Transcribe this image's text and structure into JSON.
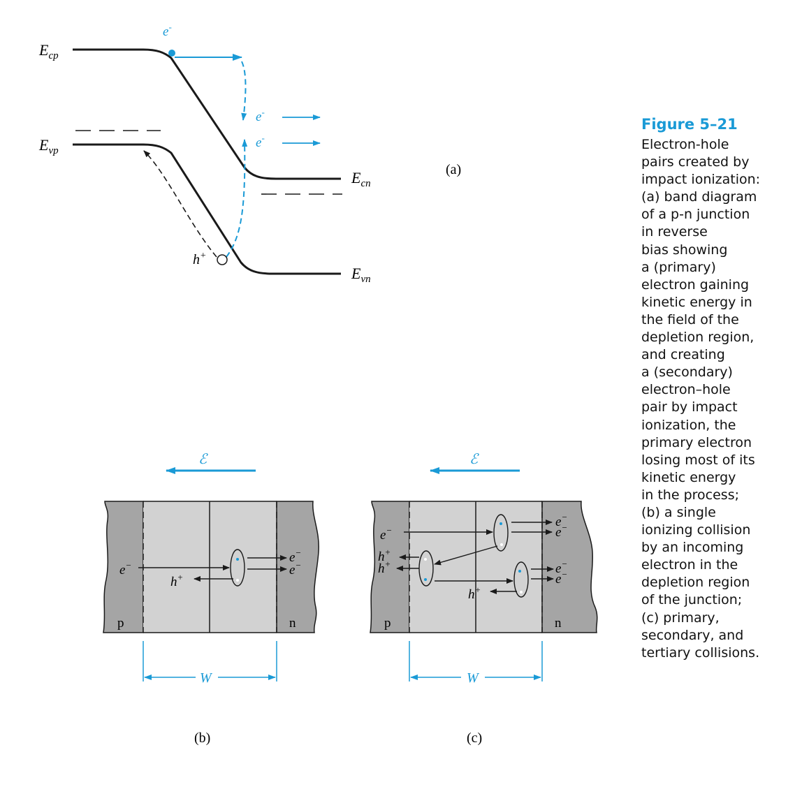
{
  "colors": {
    "accent": "#1a9ad6",
    "line": "#1a1a1a",
    "depletion_fill": "#d2d2d2",
    "neutral_fill": "#a5a5a5"
  },
  "panel_a": {
    "label": "(a)",
    "ecp_label": "E",
    "ecp_sub": "cp",
    "evp_label": "E",
    "evp_sub": "vp",
    "ecn_label": "E",
    "ecn_sub": "cn",
    "evn_label": "E",
    "evn_sub": "vn",
    "electron_label": "e",
    "electron_sup": "-",
    "secondary_electron_1": "e",
    "secondary_electron_1_sup": "-",
    "secondary_electron_2": "e",
    "secondary_electron_2_sup": "-",
    "hole_label": "h",
    "hole_sup": "+"
  },
  "panel_b": {
    "label": "(b)",
    "field_symbol": "ℰ",
    "p_label": "p",
    "n_label": "n",
    "w_label": "W",
    "incoming_electron": "e",
    "incoming_electron_sup": "−",
    "hole": "h",
    "hole_sup": "+",
    "out_electron_1": "e",
    "out_electron_1_sup": "−",
    "out_electron_2": "e",
    "out_electron_2_sup": "−"
  },
  "panel_c": {
    "label": "(c)",
    "field_symbol": "ℰ",
    "p_label": "p",
    "n_label": "n",
    "w_label": "W",
    "incoming_electron": "e",
    "incoming_electron_sup": "−",
    "hole_1": "h",
    "hole_1_sup": "+",
    "hole_2": "h",
    "hole_2_sup": "+",
    "hole_3": "h",
    "hole_3_sup": "+",
    "out_electron_1": "e",
    "out_electron_1_sup": "−",
    "out_electron_2": "e",
    "out_electron_2_sup": "−",
    "out_electron_3": "e",
    "out_electron_3_sup": "−",
    "out_electron_4": "e",
    "out_electron_4_sup": "−"
  },
  "caption": {
    "title": "Figure 5–21",
    "lines": [
      "Electron-hole",
      "pairs created by",
      "impact ionization:",
      "(a) band diagram",
      "of a p-n junction",
      "in reverse",
      "bias showing",
      "a (primary)",
      "electron gaining",
      "kinetic energy in",
      "the field of the",
      "depletion region,",
      "and creating",
      "a (secondary)",
      "electron–hole",
      "pair by impact",
      "ionization, the",
      "primary electron",
      "losing most of its",
      "kinetic energy",
      "in the process;",
      "(b) a single",
      "ionizing collision",
      "by an incoming",
      "electron in the",
      "depletion region",
      "of the junction;",
      "(c) primary,",
      "secondary, and",
      "tertiary collisions."
    ]
  }
}
